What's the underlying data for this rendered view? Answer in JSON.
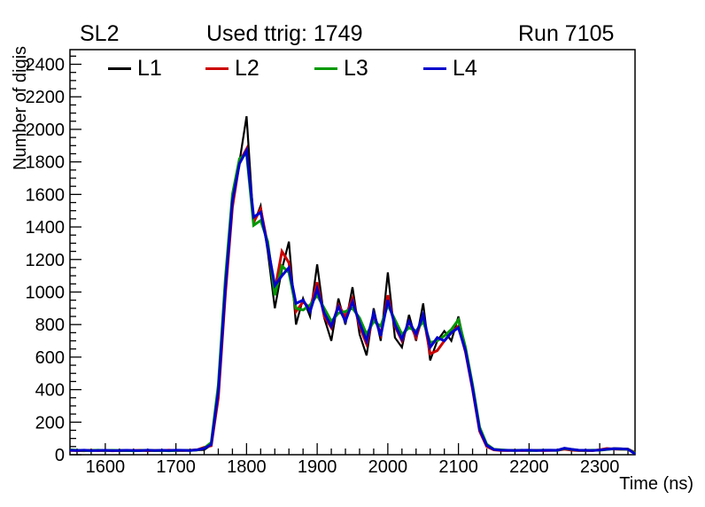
{
  "header": {
    "left": "SL2",
    "center": "Used ttrig: 1749",
    "right": "Run 7105"
  },
  "chart_data": {
    "type": "line",
    "title": "Used ttrig: 1749",
    "legend_position": "top-horizontal-inside",
    "frame_color": "#000000",
    "background_color": "#ffffff",
    "x_start": 1550,
    "x_step": 10,
    "x_axis": {
      "title": "Time (ns)",
      "min": 1550,
      "max": 2350,
      "major_tick_labels": [
        1600,
        1700,
        1800,
        1900,
        2000,
        2100,
        2200,
        2300
      ],
      "minor_tick_step": 20,
      "grid": false
    },
    "y_axis": {
      "title": "Number of digis",
      "min": 0,
      "max": 2490,
      "major_tick_labels": [
        0,
        200,
        400,
        600,
        800,
        1000,
        1200,
        1400,
        1600,
        1800,
        2000,
        2200,
        2400
      ],
      "minor_tick_step": 50,
      "grid": false
    },
    "series": [
      {
        "name": "L1",
        "color": "#000000",
        "values": [
          28,
          24,
          26,
          25,
          27,
          25,
          26,
          24,
          25,
          27,
          26,
          25,
          24,
          26,
          25,
          27,
          26,
          25,
          28,
          30,
          60,
          380,
          1050,
          1550,
          1800,
          2080,
          1420,
          1530,
          1250,
          900,
          1140,
          1310,
          800,
          960,
          850,
          1170,
          840,
          700,
          960,
          800,
          1030,
          740,
          610,
          900,
          700,
          1120,
          720,
          660,
          860,
          700,
          930,
          580,
          700,
          760,
          700,
          850,
          650,
          420,
          160,
          60,
          35,
          28,
          26,
          25,
          27,
          26,
          25,
          27,
          26,
          28,
          36,
          30,
          26,
          25,
          27,
          28,
          34,
          40,
          38,
          36,
          15
        ]
      },
      {
        "name": "L2",
        "color": "#cc0000",
        "values": [
          26,
          25,
          24,
          27,
          25,
          26,
          24,
          25,
          26,
          25,
          27,
          24,
          26,
          25,
          28,
          26,
          25,
          27,
          30,
          45,
          55,
          350,
          980,
          1520,
          1800,
          1880,
          1430,
          1510,
          1290,
          1010,
          1250,
          1180,
          880,
          940,
          900,
          1060,
          850,
          780,
          920,
          850,
          960,
          790,
          680,
          860,
          740,
          980,
          790,
          700,
          820,
          720,
          860,
          620,
          640,
          700,
          750,
          790,
          630,
          400,
          145,
          50,
          30,
          26,
          25,
          27,
          25,
          26,
          27,
          25,
          26,
          27,
          34,
          28,
          25,
          26,
          25,
          30,
          38,
          35,
          33,
          34,
          12
        ]
      },
      {
        "name": "L3",
        "color": "#009900",
        "values": [
          30,
          27,
          25,
          26,
          28,
          25,
          27,
          26,
          25,
          24,
          26,
          27,
          25,
          26,
          24,
          25,
          27,
          26,
          29,
          40,
          75,
          430,
          1080,
          1600,
          1820,
          1850,
          1410,
          1440,
          1310,
          980,
          1160,
          1120,
          900,
          890,
          920,
          980,
          900,
          820,
          870,
          880,
          900,
          840,
          740,
          820,
          790,
          920,
          830,
          740,
          780,
          760,
          820,
          690,
          700,
          730,
          770,
          830,
          660,
          430,
          170,
          65,
          33,
          30,
          27,
          26,
          28,
          25,
          26,
          28,
          27,
          26,
          38,
          32,
          27,
          26,
          28,
          27,
          32,
          36,
          34,
          33,
          10
        ]
      },
      {
        "name": "L4",
        "color": "#0000cc",
        "values": [
          27,
          26,
          28,
          25,
          26,
          27,
          25,
          26,
          27,
          26,
          25,
          28,
          26,
          27,
          26,
          28,
          27,
          26,
          30,
          38,
          62,
          390,
          1020,
          1560,
          1790,
          1870,
          1460,
          1490,
          1280,
          1040,
          1100,
          1150,
          930,
          950,
          880,
          1020,
          870,
          790,
          910,
          820,
          940,
          810,
          700,
          870,
          730,
          950,
          800,
          710,
          820,
          740,
          860,
          660,
          720,
          700,
          750,
          780,
          640,
          410,
          155,
          58,
          32,
          28,
          27,
          26,
          27,
          28,
          26,
          27,
          28,
          27,
          40,
          33,
          28,
          27,
          26,
          29,
          33,
          37,
          36,
          34,
          5
        ]
      }
    ]
  }
}
